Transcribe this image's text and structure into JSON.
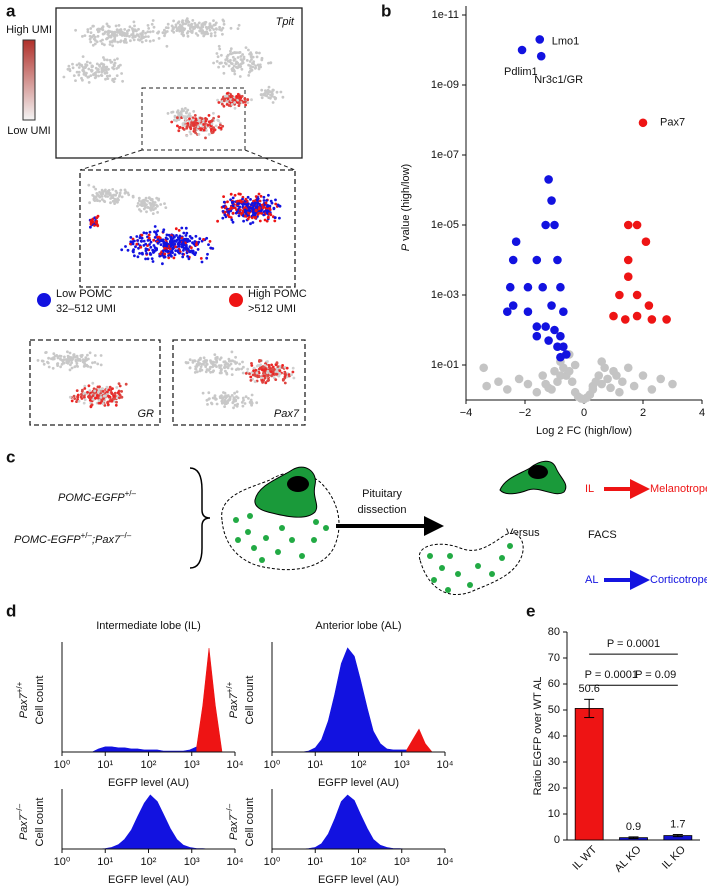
{
  "panel_labels": [
    "a",
    "b",
    "c",
    "d",
    "e"
  ],
  "panel_a": {
    "main_label": "Tpit",
    "colorbar": {
      "high": "High UMI",
      "low": "Low UMI"
    },
    "legend": [
      {
        "lines": [
          "Low POMC",
          "32–512 UMI"
        ],
        "color": "#1212e0"
      },
      {
        "lines": [
          "High POMC",
          ">512 UMI"
        ],
        "color": "#ee1414"
      }
    ],
    "insets": [
      "GR",
      "Pax7"
    ]
  },
  "panel_c": {
    "genotypes": [
      [
        {
          "text": "POMC-EGFP",
          "style": "italic"
        },
        {
          "text": "+/–",
          "style": "sup"
        }
      ],
      [
        {
          "text": "POMC-EGFP",
          "style": "italic"
        },
        {
          "text": "+/–",
          "style": "sup"
        },
        {
          "text": ";Pax7",
          "style": "italic"
        },
        {
          "text": "–/–",
          "style": "sup"
        }
      ]
    ],
    "step": [
      "Pituitary",
      "dissection"
    ],
    "versus": "Versus",
    "facs": "FACS",
    "outputs": [
      {
        "lobe": "IL",
        "cell": "Melanotropes",
        "color": "#ee1414"
      },
      {
        "lobe": "AL",
        "cell": "Corticotropes",
        "color": "#1414e0"
      }
    ]
  },
  "chart_data": [
    {
      "type": "scatter",
      "xlabel": "Log 2 FC (high/low)",
      "ylabel": [
        {
          "text": "P",
          "style": "italic"
        },
        {
          "text": " value (high/low)",
          "style": "plain"
        }
      ],
      "xlim": [
        -4,
        4
      ],
      "xticks": [
        {
          "value": -4,
          "label": "−4"
        },
        {
          "value": -2,
          "label": "−2"
        },
        0,
        2,
        4
      ],
      "ylim": [
        1,
        1e-11
      ],
      "yscale": "log",
      "yticks": [
        {
          "value": 0.1,
          "label": "1e-01"
        },
        {
          "value": 0.001,
          "label": "1e-03"
        },
        {
          "value": 1e-05,
          "label": "1e-05"
        },
        {
          "value": 1e-07,
          "label": "1e-07"
        },
        {
          "value": 1e-09,
          "label": "1e-09"
        },
        {
          "value": 1e-11,
          "label": "1e-11"
        }
      ],
      "series": [
        {
          "color": "#c4c4c4",
          "x": [
            -3.4,
            -3.3,
            -2.9,
            -2.6,
            -2.2,
            -1.9,
            -1.6,
            -1.4,
            -1.2,
            -1.0,
            -0.9,
            -0.8,
            -0.7,
            -0.6,
            -0.5,
            -0.4,
            -0.3,
            -0.2,
            -0.1,
            0,
            0.1,
            0.2,
            0.3,
            0.4,
            0.5,
            0.6,
            0.7,
            0.8,
            0.9,
            1.0,
            1.1,
            1.3,
            1.5,
            1.7,
            2.0,
            2.3,
            2.6,
            3.0,
            -0.5,
            -0.3,
            0.3,
            0.6,
            -0.8,
            -1.1,
            1.2,
            -1.3
          ],
          "values": [
            0.12,
            0.4,
            0.3,
            0.5,
            0.25,
            0.35,
            0.6,
            0.2,
            0.45,
            0.15,
            0.3,
            0.08,
            0.12,
            0.2,
            0.05,
            0.3,
            0.6,
            0.8,
            0.9,
            0.95,
            0.85,
            0.7,
            0.5,
            0.3,
            0.2,
            0.35,
            0.12,
            0.25,
            0.45,
            0.15,
            0.2,
            0.3,
            0.12,
            0.4,
            0.2,
            0.5,
            0.25,
            0.35,
            0.15,
            0.1,
            0.4,
            0.08,
            0.2,
            0.5,
            0.6,
            0.35
          ]
        },
        {
          "color": "#1212e0",
          "x": [
            -2.1,
            -1.5,
            -1.45,
            -1.2,
            -1.1,
            -1.0,
            -2.3,
            -1.3,
            -2.4,
            -1.6,
            -0.9,
            -2.5,
            -1.9,
            -1.4,
            -0.8,
            -2.4,
            -1.9,
            -1.1,
            -0.7,
            -1.6,
            -1.3,
            -1.0,
            -0.8,
            -1.2,
            -0.9,
            -0.7,
            -1.6,
            -2.6,
            -0.6,
            -0.8
          ],
          "values": [
            1e-10,
            5e-11,
            1.5e-10,
            5e-07,
            2e-06,
            1e-05,
            3e-05,
            1e-05,
            0.0001,
            0.0001,
            0.0001,
            0.0006,
            0.0006,
            0.0006,
            0.0006,
            0.002,
            0.003,
            0.002,
            0.003,
            0.008,
            0.008,
            0.01,
            0.015,
            0.02,
            0.03,
            0.03,
            0.015,
            0.003,
            0.05,
            0.06
          ]
        },
        {
          "color": "#ee1414",
          "x": [
            1.5,
            1.8,
            2.1,
            1.5,
            1.5,
            1.2,
            1.8,
            2.2,
            1.0,
            1.4,
            1.8,
            2.3,
            2.8,
            2.0
          ],
          "values": [
            1e-05,
            1e-05,
            3e-05,
            0.0001,
            0.0003,
            0.001,
            0.001,
            0.002,
            0.004,
            0.005,
            0.004,
            0.005,
            0.005,
            1.2e-08
          ]
        }
      ],
      "annotations": [
        "Lmo1",
        "Pdlim1",
        "Nr3c1/GR",
        "Pax7"
      ]
    },
    {
      "type": "area",
      "title": "Intermediate lobe (IL)",
      "genotype": [
        {
          "text": "Pax7",
          "style": "italic"
        },
        {
          "text": "+/+",
          "style": "sup"
        }
      ],
      "ylabel": "Cell count",
      "xlabel": "EGFP level (AU)",
      "xscale": "log",
      "xlim": [
        1,
        10000
      ],
      "xticks": [
        {
          "value": 1,
          "label": "10⁰"
        },
        {
          "value": 10,
          "label": "10¹"
        },
        {
          "value": 100,
          "label": "10²"
        },
        {
          "value": 1000,
          "label": "10³"
        },
        {
          "value": 10000,
          "label": "10⁴"
        }
      ],
      "ylim": [
        0,
        100
      ],
      "series": [
        {
          "color": "#1212e0",
          "x": [
            5,
            7,
            10,
            14,
            20,
            28,
            40,
            56,
            80,
            110,
            160,
            220,
            320,
            450,
            640,
            900,
            1300
          ],
          "values": [
            0,
            3,
            5,
            5,
            4,
            4,
            3,
            3,
            2,
            2,
            2,
            1,
            1,
            1,
            1,
            2,
            5
          ]
        },
        {
          "color": "#ee1414",
          "x": [
            1300,
            1800,
            2500,
            3500,
            5000
          ],
          "values": [
            5,
            45,
            100,
            45,
            0
          ]
        }
      ]
    },
    {
      "type": "area",
      "title": "Anterior lobe (AL)",
      "genotype": [
        {
          "text": "Pax7",
          "style": "italic"
        },
        {
          "text": "+/+",
          "style": "sup"
        }
      ],
      "ylabel": "Cell count",
      "xlabel": "EGFP level (AU)",
      "xscale": "log",
      "xlim": [
        1,
        10000
      ],
      "xticks": [
        {
          "value": 1,
          "label": "10⁰"
        },
        {
          "value": 10,
          "label": "10¹"
        },
        {
          "value": 100,
          "label": "10²"
        },
        {
          "value": 1000,
          "label": "10³"
        },
        {
          "value": 10000,
          "label": "10⁴"
        }
      ],
      "ylim": [
        0,
        100
      ],
      "series": [
        {
          "color": "#1212e0",
          "x": [
            5,
            7,
            10,
            14,
            20,
            28,
            40,
            56,
            80,
            110,
            160,
            220,
            320,
            450,
            640,
            900,
            1300
          ],
          "values": [
            0,
            1,
            4,
            12,
            30,
            55,
            85,
            100,
            92,
            70,
            42,
            20,
            8,
            3,
            2,
            2,
            2
          ]
        },
        {
          "color": "#ee1414",
          "x": [
            1300,
            1800,
            2500,
            3500,
            5000
          ],
          "values": [
            2,
            12,
            22,
            8,
            0
          ]
        }
      ]
    },
    {
      "type": "area",
      "genotype": [
        {
          "text": "Pax7",
          "style": "italic"
        },
        {
          "text": "–/–",
          "style": "sup"
        }
      ],
      "ylabel": "Cell count",
      "xlabel": "EGFP level (AU)",
      "xscale": "log",
      "xlim": [
        1,
        10000
      ],
      "xticks": [
        {
          "value": 1,
          "label": "10⁰"
        },
        {
          "value": 10,
          "label": "10¹"
        },
        {
          "value": 100,
          "label": "10²"
        },
        {
          "value": 1000,
          "label": "10³"
        },
        {
          "value": 10000,
          "label": "10⁴"
        }
      ],
      "ylim": [
        0,
        100
      ],
      "series": [
        {
          "color": "#1212e0",
          "x": [
            5,
            7,
            10,
            14,
            20,
            28,
            40,
            56,
            80,
            110,
            160,
            220,
            320,
            450,
            640,
            900,
            1300,
            1800,
            2500
          ],
          "values": [
            0,
            0,
            1,
            3,
            8,
            18,
            35,
            60,
            85,
            100,
            88,
            65,
            38,
            18,
            7,
            3,
            1,
            1,
            0
          ]
        }
      ]
    },
    {
      "type": "area",
      "genotype": [
        {
          "text": "Pax7",
          "style": "italic"
        },
        {
          "text": "–/–",
          "style": "sup"
        }
      ],
      "ylabel": "Cell count",
      "xlabel": "EGFP level (AU)",
      "xscale": "log",
      "xlim": [
        1,
        10000
      ],
      "xticks": [
        {
          "value": 1,
          "label": "10⁰"
        },
        {
          "value": 10,
          "label": "10¹"
        },
        {
          "value": 100,
          "label": "10²"
        },
        {
          "value": 1000,
          "label": "10³"
        },
        {
          "value": 10000,
          "label": "10⁴"
        }
      ],
      "ylim": [
        0,
        100
      ],
      "series": [
        {
          "color": "#1212e0",
          "x": [
            5,
            7,
            10,
            14,
            20,
            28,
            40,
            56,
            80,
            110,
            160,
            220,
            320,
            450,
            640,
            900,
            1300
          ],
          "values": [
            0,
            1,
            3,
            10,
            28,
            55,
            88,
            100,
            90,
            65,
            38,
            18,
            7,
            3,
            1,
            1,
            0
          ]
        }
      ]
    },
    {
      "type": "bar",
      "ylabel": "Ratio EGFP over WT AL",
      "categories": [
        "IL WT",
        "AL KO",
        "IL KO"
      ],
      "values": [
        50.6,
        0.9,
        1.7
      ],
      "errors": [
        3.5,
        0.3,
        0.4
      ],
      "colors": [
        "#ee1414",
        "#1414d0",
        "#1414d0"
      ],
      "ylim": [
        0,
        80
      ],
      "yticks": [
        0,
        10,
        20,
        30,
        40,
        50,
        60,
        70,
        80
      ],
      "comparisons": [
        "P = 0.0001",
        "P = 0.0001",
        "P = 0.09"
      ]
    }
  ]
}
